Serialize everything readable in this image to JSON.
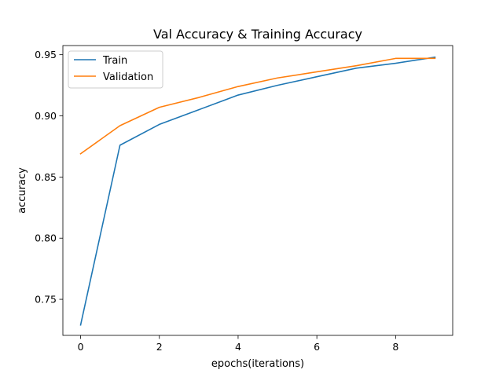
{
  "chart_data": {
    "type": "line",
    "title": "Val Accuracy & Training Accuracy",
    "xlabel": "epochs(iterations)",
    "ylabel": "accuracy",
    "x": [
      0,
      1,
      2,
      3,
      4,
      5,
      6,
      7,
      8,
      9
    ],
    "xlim": [
      -0.45,
      9.45
    ],
    "ylim": [
      0.7205,
      0.9575
    ],
    "xticks": [
      0,
      2,
      4,
      6,
      8
    ],
    "xtick_labels": [
      "0",
      "2",
      "4",
      "6",
      "8"
    ],
    "yticks": [
      0.75,
      0.8,
      0.85,
      0.9,
      0.95
    ],
    "ytick_labels": [
      "0.75",
      "0.80",
      "0.85",
      "0.90",
      "0.95"
    ],
    "grid": false,
    "legend_position": "top-left",
    "series": [
      {
        "name": "Train",
        "color": "#1f77b4",
        "values": [
          0.729,
          0.876,
          0.893,
          0.905,
          0.917,
          0.925,
          0.932,
          0.939,
          0.943,
          0.948
        ]
      },
      {
        "name": "Validation",
        "color": "#ff7f0e",
        "values": [
          0.869,
          0.892,
          0.907,
          0.915,
          0.924,
          0.931,
          0.936,
          0.941,
          0.947,
          0.947
        ]
      }
    ]
  }
}
